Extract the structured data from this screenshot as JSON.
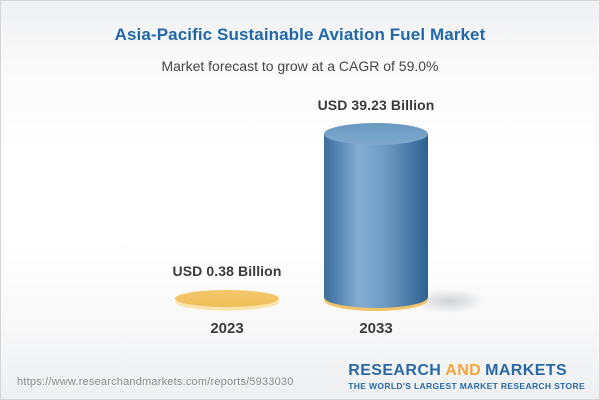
{
  "header": {
    "title": "Asia-Pacific Sustainable Aviation Fuel Market",
    "subtitle": "Market forecast to grow at a CAGR of 59.0%"
  },
  "chart_data": {
    "type": "bar",
    "style": "3d-cylinder",
    "categories": [
      "2023",
      "2033"
    ],
    "values": [
      0.38,
      39.23
    ],
    "unit": "USD Billion",
    "value_labels": [
      "USD 0.38 Billion",
      "USD 39.23 Billion"
    ],
    "title": "Asia-Pacific Sustainable Aviation Fuel Market",
    "subtitle": "Market forecast to grow at a CAGR of 59.0%",
    "cagr": "59.0%",
    "legend": false,
    "axes": "none",
    "series_colors": [
      {
        "name": "2023",
        "shape": "flat-disc",
        "main": "#f5c76c",
        "main_dark": "#efbf59",
        "rim_light": "#fae3ab"
      },
      {
        "name": "2033",
        "shape": "cylinder",
        "body_left": "#3d6f9e",
        "body_highlight": "#85add1",
        "body_mid": "#6f9cc4",
        "body_right": "#2e6191",
        "top_start": "#6899c1",
        "top_end": "#7fa9cd",
        "base_rim": "#f2c464"
      }
    ]
  },
  "footer": {
    "url": "https://www.researchandmarkets.com/reports/5933030",
    "logo": {
      "word1": "RESEARCH",
      "word2": "AND",
      "word3": "MARKETS",
      "tagline": "THE WORLD'S LARGEST MARKET RESEARCH STORE"
    }
  },
  "theme": {
    "title_blue": "#2268a8",
    "logo_blue": "#2a69a4",
    "logo_orange": "#f2a73d",
    "url_gray": "#8e8e8e",
    "text_dark": "#3b3b3b",
    "border": "#d5d5d5"
  }
}
